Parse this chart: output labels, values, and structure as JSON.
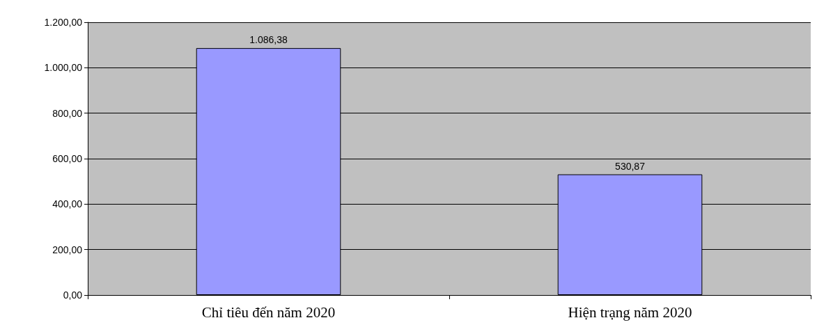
{
  "chart_data": {
    "type": "bar",
    "categories": [
      "Chỉ tiêu đến năm 2020",
      "Hiện trạng năm 2020"
    ],
    "values": [
      1086.38,
      530.87
    ],
    "value_labels": [
      "1.086,38",
      "530,87"
    ],
    "color": "#9999ff",
    "ylim": [
      0,
      1200
    ],
    "yticks": [
      {
        "value": 0,
        "label": "0,00"
      },
      {
        "value": 200,
        "label": "200,00"
      },
      {
        "value": 400,
        "label": "400,00"
      },
      {
        "value": 600,
        "label": "600,00"
      },
      {
        "value": 800,
        "label": "800,00"
      },
      {
        "value": 1000,
        "label": "1.000,00"
      },
      {
        "value": 1200,
        "label": "1.200,00"
      }
    ],
    "grid": "y"
  }
}
